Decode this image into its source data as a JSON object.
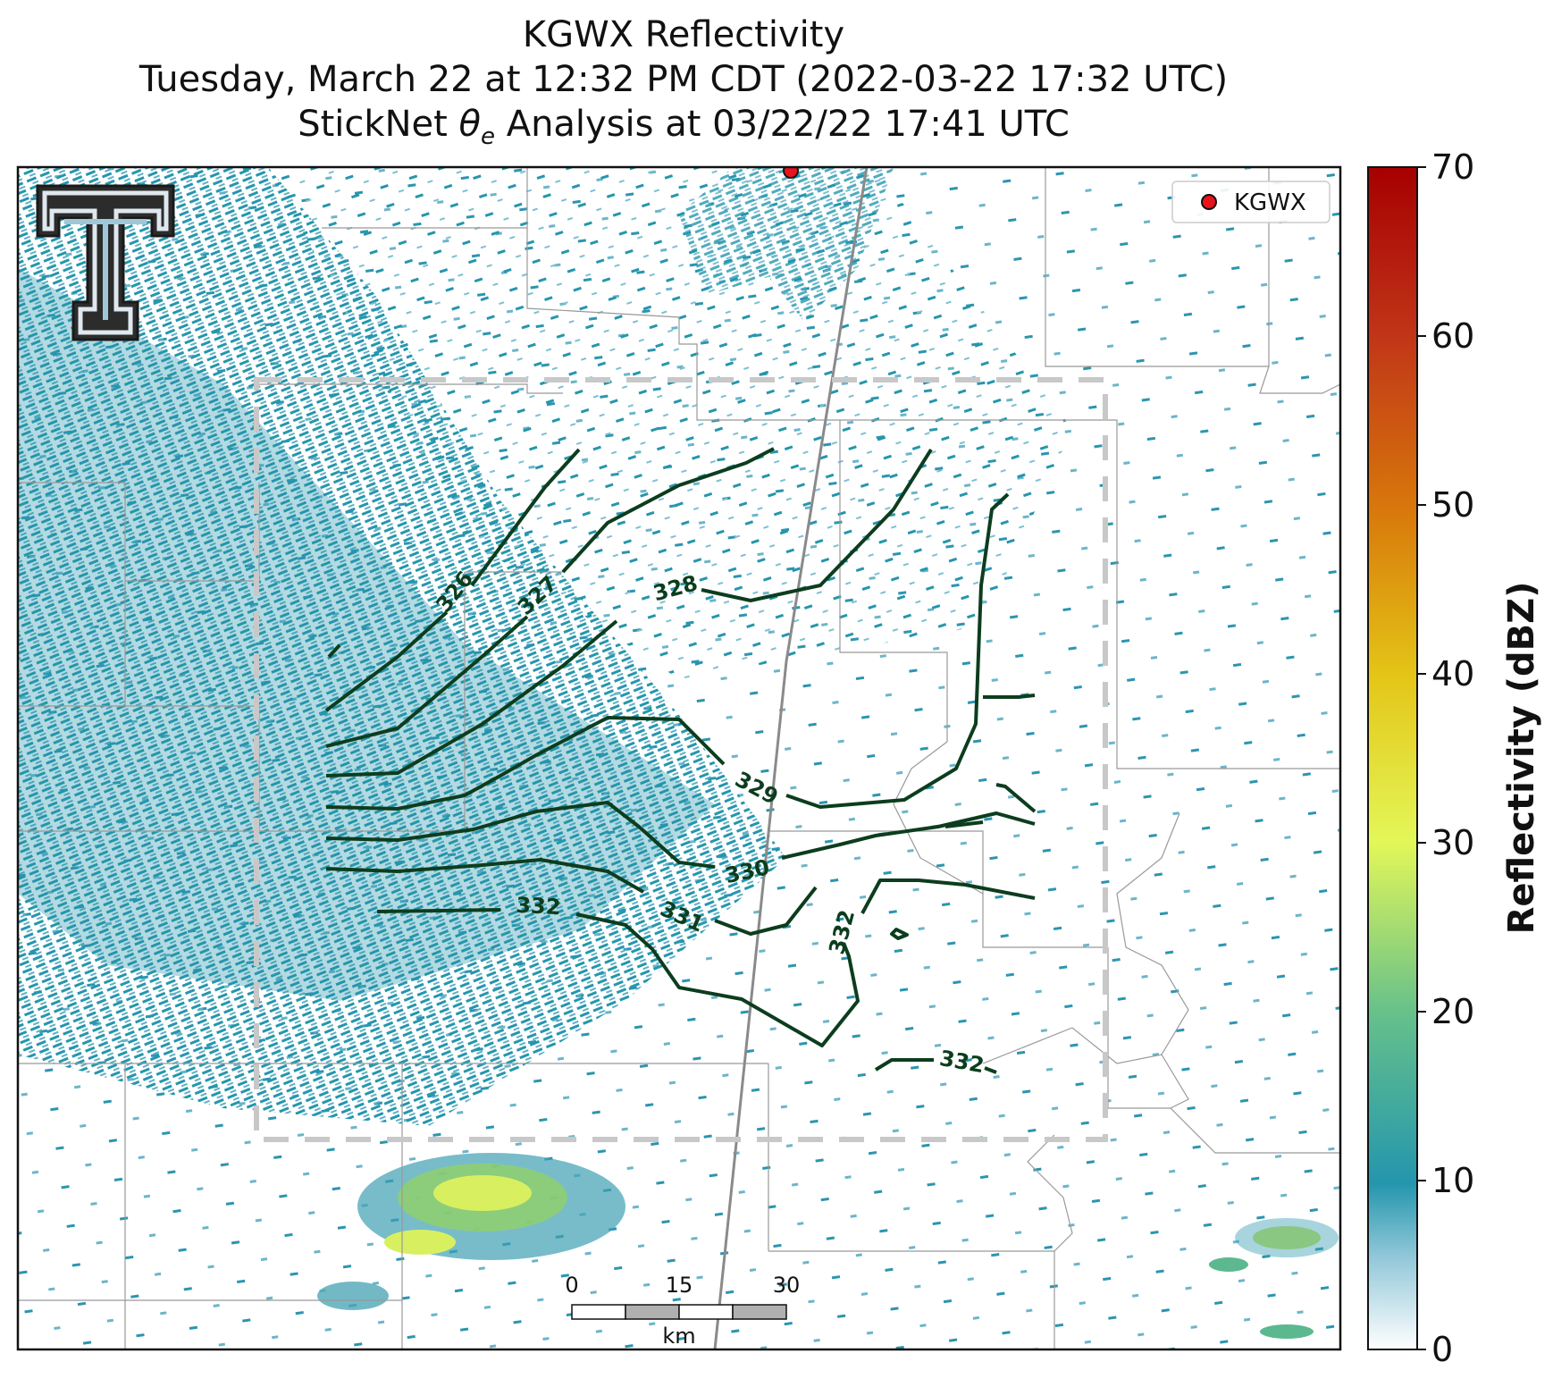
{
  "titles": {
    "line1": "KGWX Reflectivity",
    "line2": "Tuesday, March 22 at 12:32 PM CDT (2022-03-22 17:32 UTC)",
    "line3_pre": "StickNet ",
    "line3_post": " Analysis at 03/22/22 17:41 UTC"
  },
  "legend": {
    "label": "KGWX",
    "marker_color": "#e8141c"
  },
  "contours": [
    {
      "value": "326",
      "label": "326"
    },
    {
      "value": "327",
      "label": "327"
    },
    {
      "value": "328",
      "label": "328"
    },
    {
      "value": "329",
      "label": "329"
    },
    {
      "value": "330",
      "label": "330"
    },
    {
      "value": "331",
      "label": "331"
    },
    {
      "value": "332",
      "label": "332"
    }
  ],
  "contour_color": "#0c3d1e",
  "scalebar": {
    "ticks": [
      "0",
      "15",
      "30"
    ],
    "unit": "km"
  },
  "colorbar": {
    "label": "Reflectivity (dBZ)",
    "ticks": [
      "0",
      "10",
      "20",
      "30",
      "40",
      "50",
      "60",
      "70"
    ],
    "range": [
      0,
      70
    ]
  },
  "logo": {
    "name": "double-T-logo"
  },
  "colors": {
    "light_echo": "#2496ad",
    "moderate_echo": "#d8f060",
    "analysis_box": "#c8c8c8",
    "county_lines": "#999999"
  }
}
